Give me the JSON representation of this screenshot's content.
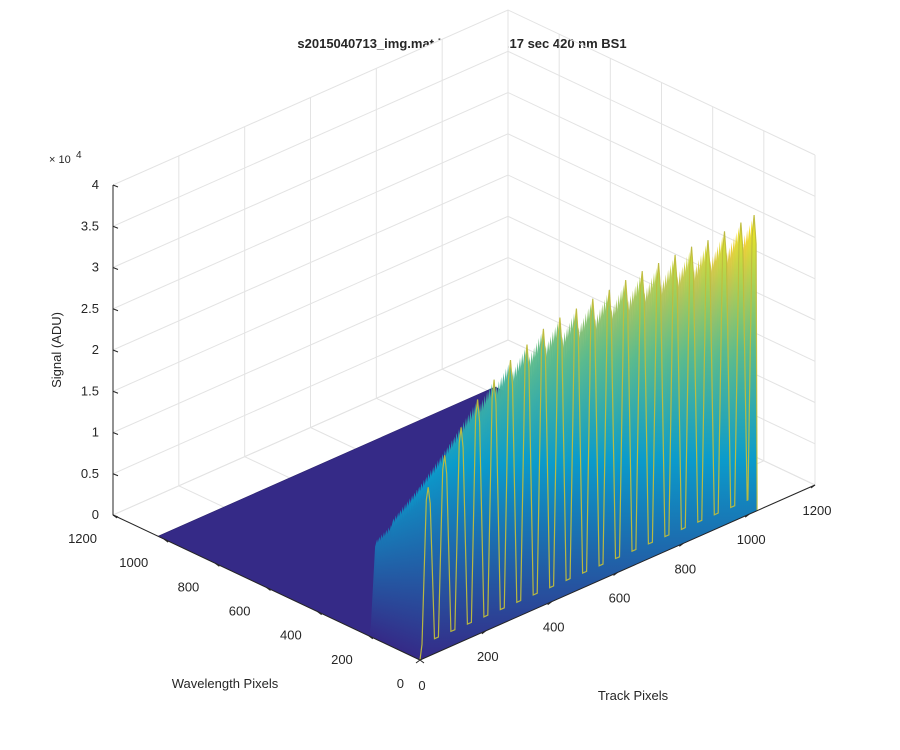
{
  "chart_data": {
    "type": "surface",
    "title": "s2015040713_img.mat int time = 0.17 sec  420 nm BS1",
    "xlabel": "Track Pixels",
    "ylabel": "Wavelength Pixels",
    "zlabel": "Signal (ADU)",
    "xlim": [
      0,
      1200
    ],
    "ylim": [
      0,
      1200
    ],
    "zlim": [
      0,
      40000
    ],
    "x_ticks": [
      "0",
      "200",
      "400",
      "600",
      "800",
      "1000",
      "1200"
    ],
    "y_ticks": [
      "0",
      "200",
      "400",
      "600",
      "800",
      "1000",
      "1200"
    ],
    "z_ticks": [
      "0",
      "0.5",
      "1",
      "1.5",
      "2",
      "2.5",
      "3",
      "3.5",
      "4"
    ],
    "z_exponent_label": "× 10",
    "z_exponent_power": "4",
    "grid": true,
    "colormap": [
      "#352a87",
      "#0363e1",
      "#1485d4",
      "#06a7c6",
      "#38b99e",
      "#92bf73",
      "#d9ba56",
      "#fcce2e",
      "#f9fb0e"
    ],
    "data_region": {
      "track_pixels": [
        0,
        1024
      ],
      "wavelength_pixels": [
        0,
        1024
      ]
    },
    "illuminated_rows": {
      "wavelength_pixels": [
        0,
        200
      ]
    },
    "track_peaks": {
      "x": [
        25,
        75,
        125,
        175,
        225,
        275,
        325,
        375,
        425,
        475,
        525,
        575,
        625,
        675,
        725,
        775,
        825,
        875,
        925,
        975,
        1015
      ],
      "peak_signal": [
        20500,
        23500,
        26000,
        28500,
        30000,
        31500,
        32500,
        33500,
        34000,
        34200,
        34500,
        34700,
        35000,
        35200,
        35300,
        35400,
        35500,
        35400,
        35600,
        35800,
        36000
      ]
    },
    "background_signal": 0
  }
}
